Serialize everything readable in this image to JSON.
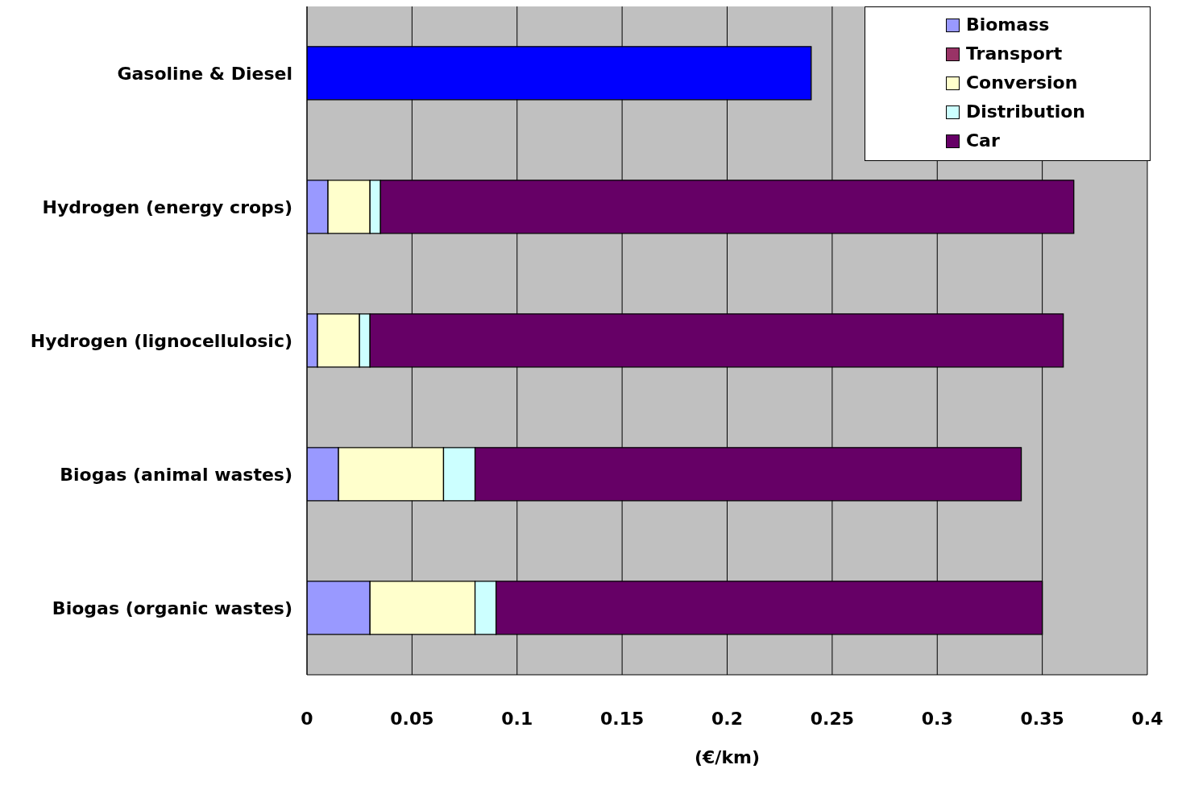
{
  "chart_data": {
    "type": "bar",
    "orientation": "horizontal",
    "stacked": true,
    "xlabel": "(€/km)",
    "categories": [
      "Gasoline & Diesel",
      "Hydrogen (energy crops)",
      "Hydrogen (lignocellulosic)",
      "Biogas (animal wastes)",
      "Biogas (organic wastes)"
    ],
    "series": [
      {
        "color": "#0000ff",
        "values": [
          0.24,
          null,
          null,
          null,
          null
        ]
      },
      {
        "name": "Biomass",
        "color": "#9999ff",
        "values": [
          null,
          0.01,
          0.005,
          0.015,
          0.03
        ]
      },
      {
        "name": "Transport",
        "color": "#993366",
        "values": [
          null,
          0,
          0,
          0,
          0
        ]
      },
      {
        "name": "Conversion",
        "color": "#ffffcc",
        "values": [
          null,
          0.02,
          0.02,
          0.05,
          0.05
        ]
      },
      {
        "name": "Distribution",
        "color": "#ccffff",
        "values": [
          null,
          0.005,
          0.005,
          0.015,
          0.01
        ]
      },
      {
        "name": "Car",
        "color": "#660066",
        "values": [
          null,
          0.33,
          0.33,
          0.26,
          0.26
        ]
      }
    ],
    "xlim": [
      0,
      0.4
    ],
    "xticks": [
      0,
      0.05,
      0.1,
      0.15,
      0.2,
      0.25,
      0.3,
      0.35,
      0.4
    ],
    "grid": "x",
    "legend": "top right"
  }
}
